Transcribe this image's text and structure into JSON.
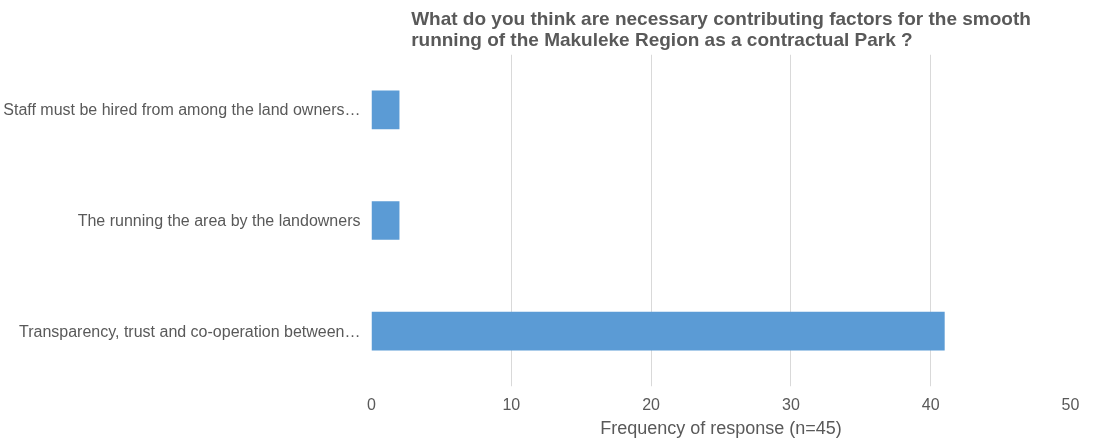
{
  "chart_data": {
    "type": "bar",
    "orientation": "horizontal",
    "title": "What do you think are necessary contributing factors for the smooth running of the Makuleke Region as a contractual Park ?",
    "categories": [
      "Staff must be hired from among the land owners…",
      "The running the area by the landowners",
      "Transparency, trust and co-operation between…"
    ],
    "values": [
      2,
      2,
      41
    ],
    "color": "#5b9bd5",
    "xlabel": "Frequency of response (n=45)",
    "xlim": [
      0,
      50
    ],
    "xticks": [
      0,
      10,
      20,
      30,
      40,
      50
    ],
    "grid": "x"
  }
}
